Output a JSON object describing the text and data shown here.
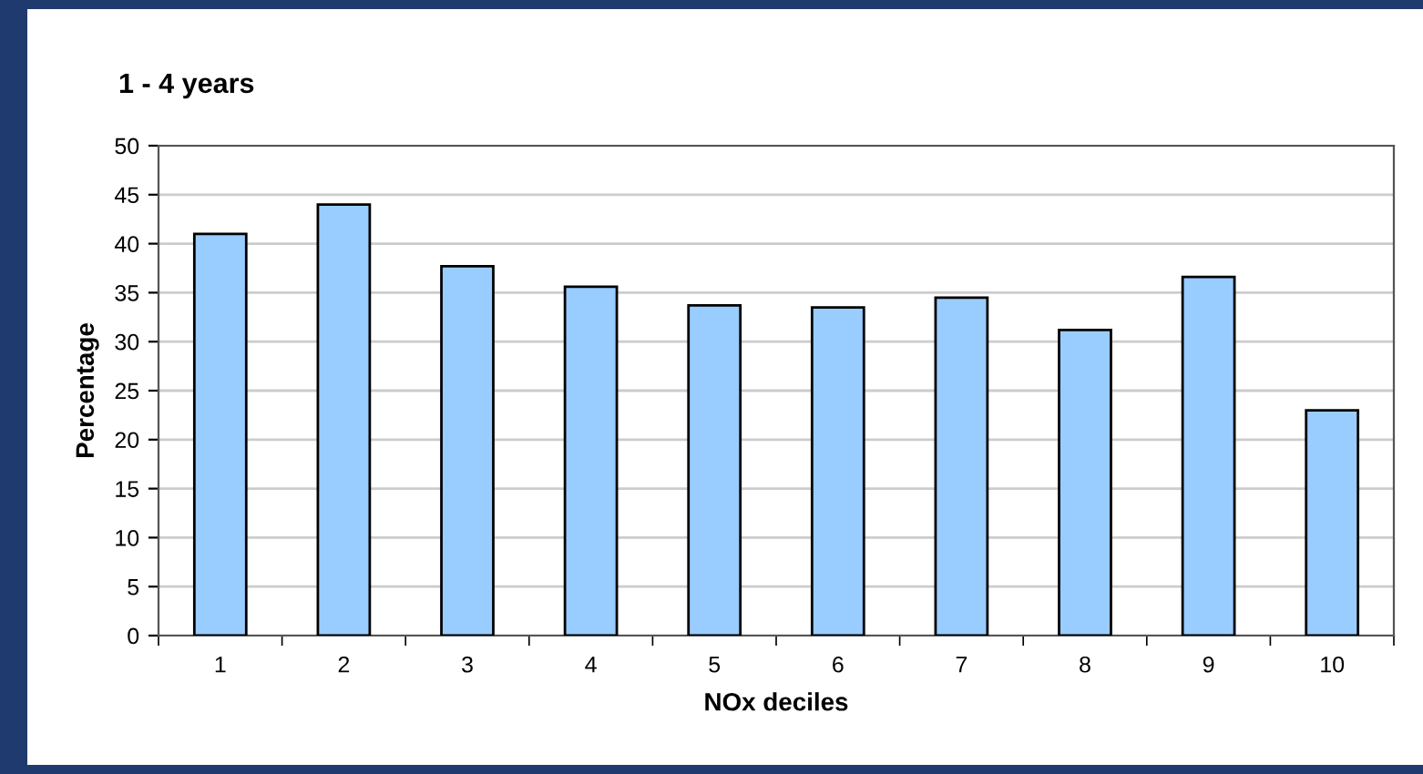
{
  "chart_data": {
    "type": "bar",
    "title": "1 - 4 years",
    "xlabel": "NOx deciles",
    "ylabel": "Percentage",
    "categories": [
      "1",
      "2",
      "3",
      "4",
      "5",
      "6",
      "7",
      "8",
      "9",
      "10"
    ],
    "values": [
      41.0,
      44.0,
      37.7,
      35.6,
      33.7,
      33.5,
      34.5,
      31.2,
      36.6,
      23.0
    ],
    "color": "#99ccff",
    "ylim": [
      0,
      50
    ],
    "yticks": [
      0,
      5,
      10,
      15,
      20,
      25,
      30,
      35,
      40,
      45,
      50
    ],
    "grid": "y"
  }
}
